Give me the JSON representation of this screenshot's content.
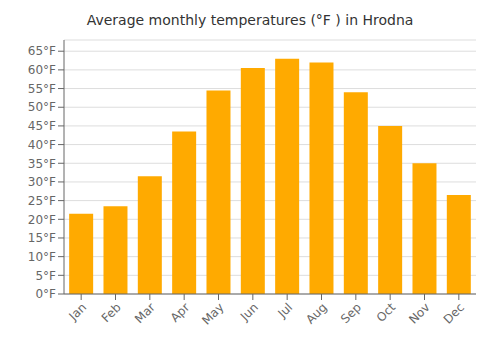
{
  "chart_data": {
    "type": "bar",
    "title": "Average monthly temperatures (°F ) in Hrodna",
    "categories": [
      "Jan",
      "Feb",
      "Mar",
      "Apr",
      "May",
      "Jun",
      "Jul",
      "Aug",
      "Sep",
      "Oct",
      "Nov",
      "Dec"
    ],
    "values": [
      21.5,
      23.5,
      31.5,
      43.5,
      54.5,
      60.5,
      63.0,
      62.0,
      54.0,
      45.0,
      35.0,
      26.5
    ],
    "color": "#FFAA00",
    "ylim": [
      0,
      68
    ],
    "yticks": [
      {
        "value": 0,
        "label": "0°F"
      },
      {
        "value": 5,
        "label": "5°F"
      },
      {
        "value": 10,
        "label": "10°F"
      },
      {
        "value": 15,
        "label": "15°F"
      },
      {
        "value": 20,
        "label": "20°F"
      },
      {
        "value": 25,
        "label": "25°F"
      },
      {
        "value": 30,
        "label": "30°F"
      },
      {
        "value": 35,
        "label": "35°F"
      },
      {
        "value": 40,
        "label": "40°F"
      },
      {
        "value": 45,
        "label": "45°F"
      },
      {
        "value": 50,
        "label": "50°F"
      },
      {
        "value": 55,
        "label": "55°F"
      },
      {
        "value": 60,
        "label": "60°F"
      },
      {
        "value": 65,
        "label": "65°F"
      }
    ],
    "grid": true
  }
}
